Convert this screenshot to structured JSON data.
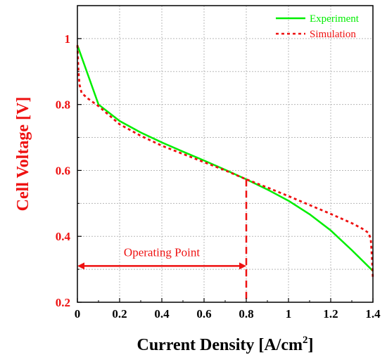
{
  "chart_data": {
    "type": "line",
    "title": "",
    "xlabel": "Current Density [A/cm",
    "xlabel_superscript": "2",
    "xlabel_close": "]",
    "ylabel": "Cell Voltage [V]",
    "xlim": [
      0,
      1.4
    ],
    "ylim": [
      0.2,
      1.1
    ],
    "x_ticks": [
      0,
      0.2,
      0.4,
      0.6,
      0.8,
      1,
      1.2,
      1.4
    ],
    "x_tick_labels": [
      "0",
      "0.2",
      "0.4",
      "0.6",
      "0.8",
      "1",
      "1.2",
      "1.4"
    ],
    "y_ticks": [
      0.2,
      0.4,
      0.6,
      0.8,
      1.0
    ],
    "y_tick_labels": [
      "0.2",
      "0.4",
      "0.6",
      "0.8",
      "1"
    ],
    "grid": true,
    "legend_position": "top-right",
    "series": [
      {
        "name": "Experiment",
        "color": "#00ee00",
        "style": "solid",
        "x": [
          0,
          0.1,
          0.2,
          0.3,
          0.4,
          0.5,
          0.6,
          0.7,
          0.8,
          0.9,
          1.0,
          1.1,
          1.2,
          1.3,
          1.4
        ],
        "y": [
          0.98,
          0.8,
          0.75,
          0.715,
          0.685,
          0.657,
          0.63,
          0.602,
          0.573,
          0.542,
          0.508,
          0.467,
          0.418,
          0.358,
          0.295
        ]
      },
      {
        "name": "Simulation",
        "color": "#ee1111",
        "style": "dotted",
        "x": [
          0,
          0.005,
          0.01,
          0.02,
          0.05,
          0.1,
          0.2,
          0.3,
          0.4,
          0.5,
          0.6,
          0.7,
          0.8,
          0.9,
          1.0,
          1.1,
          1.2,
          1.3,
          1.35,
          1.38,
          1.39,
          1.395,
          1.4
        ],
        "y": [
          0.98,
          0.9,
          0.86,
          0.835,
          0.818,
          0.795,
          0.74,
          0.705,
          0.675,
          0.65,
          0.625,
          0.6,
          0.573,
          0.548,
          0.522,
          0.495,
          0.468,
          0.44,
          0.423,
          0.41,
          0.39,
          0.34,
          0.27
        ]
      }
    ],
    "annotations": [
      {
        "text": "Operating Point",
        "color": "#ee1111",
        "arrow_x_range": [
          0,
          0.8
        ],
        "arrow_y": 0.31,
        "text_y": 0.34,
        "vline_x": 0.8,
        "vline_y_range": [
          0.2,
          0.573
        ]
      }
    ]
  }
}
